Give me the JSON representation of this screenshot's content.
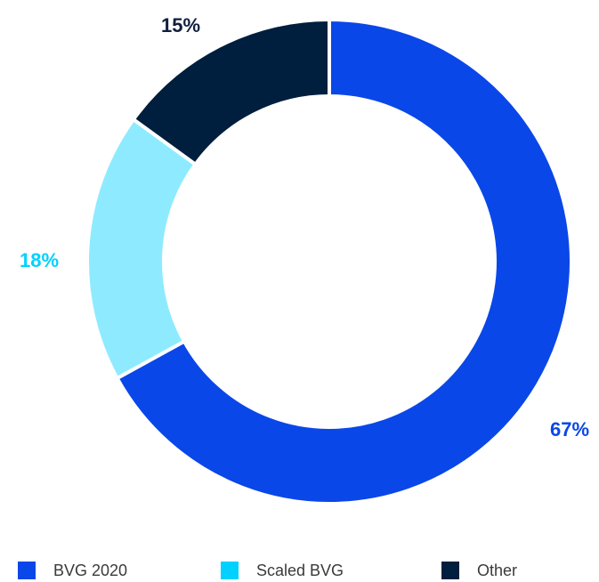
{
  "chart_data": {
    "type": "pie",
    "donut": true,
    "categories": [
      "BVG 2020",
      "Scaled BVG",
      "Other"
    ],
    "values": [
      67,
      18,
      15
    ],
    "value_labels": [
      "67%",
      "18%",
      "15%"
    ],
    "colors": [
      "#0A47E8",
      "#8EEBFF",
      "#001E3D"
    ],
    "legend_placement": "bottom",
    "legend_swatch_colors": [
      "#0A47E8",
      "#00D1FF",
      "#001E3D"
    ],
    "label_colors": [
      "#0A47E8",
      "#00D1FF",
      "#0F1F3D"
    ]
  }
}
